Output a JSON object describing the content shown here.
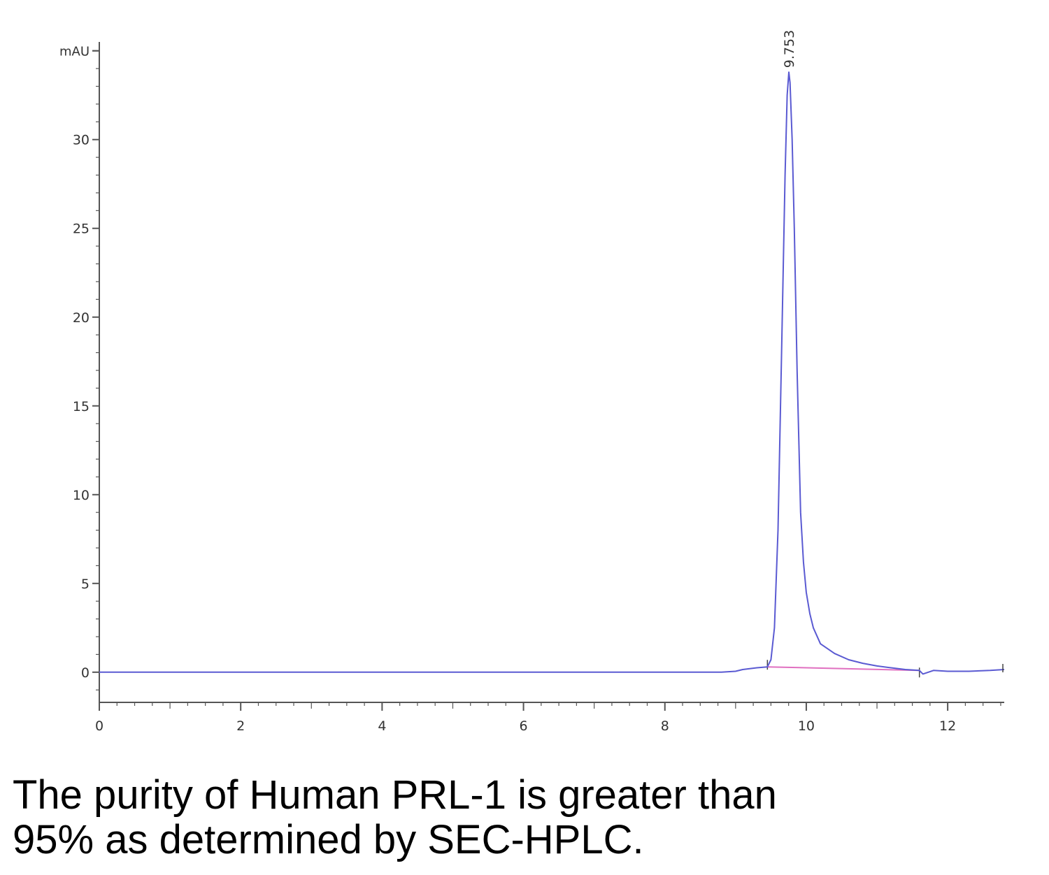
{
  "chart_data": {
    "type": "line",
    "y_unit": "mAU",
    "xlim": [
      0,
      12.8
    ],
    "ylim": [
      -1.7,
      35.5
    ],
    "x_ticks": [
      0,
      2,
      4,
      6,
      8,
      10,
      12
    ],
    "y_ticks": [
      0,
      5,
      10,
      15,
      20,
      25,
      30
    ],
    "grid": false,
    "series": [
      {
        "color": "#5a5ad2",
        "x": [
          0,
          1,
          2,
          3,
          4,
          5,
          6,
          7,
          8,
          8.8,
          9.0,
          9.1,
          9.3,
          9.45,
          9.5,
          9.55,
          9.6,
          9.65,
          9.7,
          9.73,
          9.753,
          9.77,
          9.8,
          9.83,
          9.87,
          9.92,
          9.96,
          10.0,
          10.05,
          10.1,
          10.2,
          10.4,
          10.6,
          10.8,
          11.0,
          11.2,
          11.4,
          11.6,
          11.65,
          11.8,
          12.0,
          12.3,
          12.6,
          12.8
        ],
        "y": [
          0,
          0,
          0,
          0,
          0,
          0,
          0,
          0,
          0,
          0,
          0.05,
          0.15,
          0.25,
          0.3,
          0.7,
          2.5,
          8,
          18,
          28,
          32.5,
          33.8,
          33.2,
          30,
          25,
          17,
          9,
          6.2,
          4.5,
          3.3,
          2.5,
          1.6,
          1.05,
          0.7,
          0.5,
          0.35,
          0.25,
          0.15,
          0.1,
          -0.1,
          0.1,
          0.05,
          0.05,
          0.1,
          0.15
        ]
      }
    ],
    "baseline": {
      "color": "#e070c0",
      "x": [
        9.45,
        11.6
      ],
      "y": [
        0.3,
        0.1
      ]
    },
    "annotations": [
      {
        "text": "9.753",
        "x": 9.753,
        "y": 33.8
      }
    ]
  },
  "caption": {
    "line1": "The purity of Human PRL-1 is greater than",
    "line2": "95% as determined by SEC-HPLC."
  }
}
